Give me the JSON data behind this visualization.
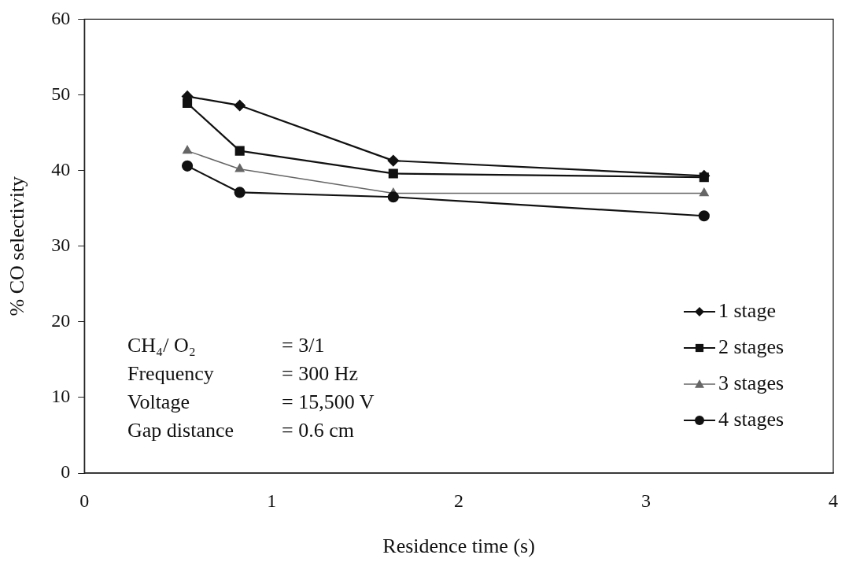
{
  "chart_data": {
    "type": "line",
    "xlabel": "Residence time (s)",
    "ylabel": "% CO selectivity",
    "x": [
      0.55,
      0.83,
      1.65,
      3.31
    ],
    "series": [
      {
        "name": "1 stage",
        "color": "#111111",
        "marker": "diamond",
        "values": [
          49.8,
          48.6,
          41.3,
          39.3
        ]
      },
      {
        "name": "2 stages",
        "color": "#111111",
        "marker": "square",
        "values": [
          48.9,
          42.6,
          39.6,
          39.1
        ]
      },
      {
        "name": "3 stages",
        "color": "#666666",
        "marker": "triangle",
        "values": [
          42.6,
          40.2,
          37.0,
          37.0
        ]
      },
      {
        "name": "4 stages",
        "color": "#111111",
        "marker": "circle",
        "values": [
          40.6,
          37.1,
          36.5,
          34.0
        ]
      }
    ],
    "xlim": [
      0,
      4
    ],
    "xticks": [
      0,
      1,
      2,
      3,
      4
    ],
    "ylim": [
      0,
      60
    ],
    "yticks": [
      0,
      10,
      20,
      30,
      40,
      50,
      60
    ],
    "grid": false,
    "legend": "bottom right",
    "line_style": "solid",
    "annotations": [
      "CH₄/ O₂ = 3/1",
      "Frequency = 300 Hz",
      "Voltage = 15,500 V",
      "Gap distance = 0.6 cm"
    ]
  }
}
